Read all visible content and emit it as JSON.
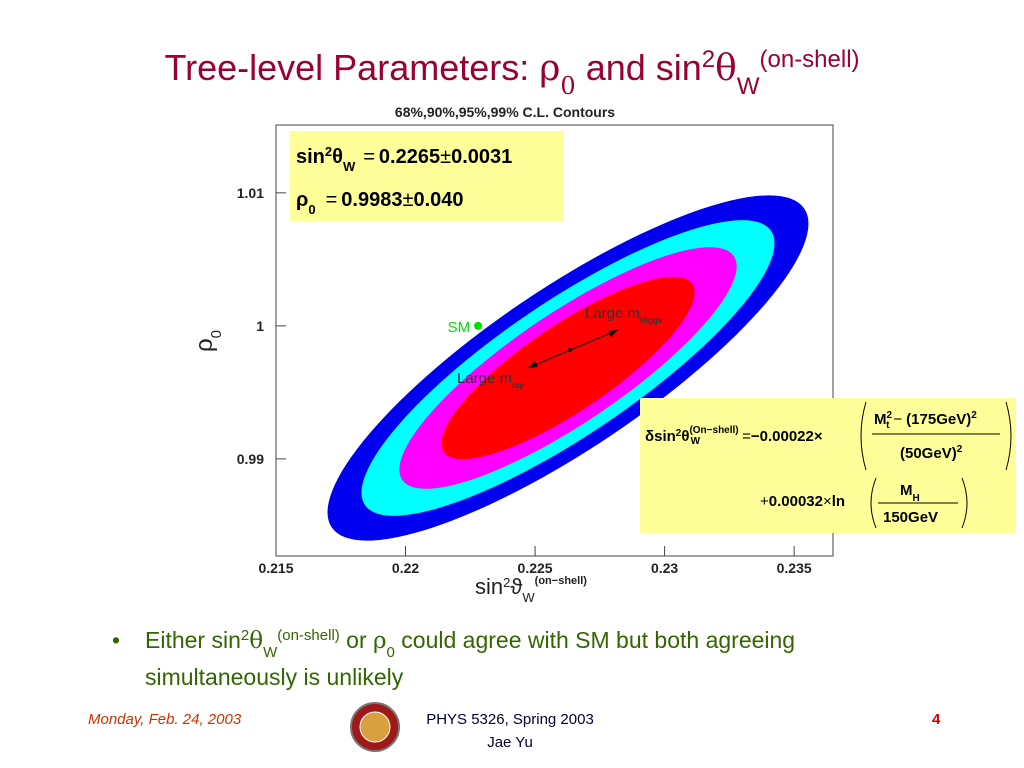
{
  "slide": {
    "title": [
      "Tree-level Parameters: ",
      "ρ",
      "0",
      " and sin",
      "2",
      "θ",
      "W",
      "(on-shell)"
    ],
    "result_box": [
      [
        "sin",
        "2",
        "θ",
        "W",
        "=",
        "0.2265",
        "±",
        "0.0031"
      ],
      [
        "ρ",
        "0",
        "=",
        "0.9983",
        "±",
        "0.040"
      ]
    ],
    "formula_box": {
      "line1": [
        "δsin",
        "2",
        "θ",
        "(On−shell)",
        "W",
        "=",
        "−0.00022×"
      ],
      "numerator": [
        "M",
        "2",
        "t",
        "−",
        "(175GeV)",
        "2"
      ],
      "denominator": [
        "(50GeV)",
        "2"
      ],
      "line2": [
        "+",
        "0.00032",
        "×",
        "ln"
      ],
      "ln_numerator": [
        "M",
        "H"
      ],
      "ln_denominator": "150GeV"
    },
    "bullet": {
      "line1": [
        "Either sin",
        "2",
        "θ",
        "W",
        "(on-shell)",
        " or ",
        "ρ",
        "0",
        " could agree with SM but both agreeing"
      ],
      "line2": "simultaneously is unlikely"
    },
    "footer": {
      "date": "Monday, Feb. 24, 2003",
      "course": "PHYS 5326, Spring 2003",
      "author": "Jae Yu",
      "page": "4"
    }
  },
  "chart_data": {
    "type": "contour",
    "title": "68%,90%,95%,99% C.L. Contours",
    "x_label": [
      "sin",
      "2",
      "ϑ",
      "W",
      "(on−shell)"
    ],
    "y_label": [
      "ρ",
      "0"
    ],
    "xlim": [
      0.215,
      0.2365
    ],
    "ylim": [
      0.9827,
      1.0151
    ],
    "xticks": [
      0.215,
      0.22,
      0.225,
      0.23,
      0.235
    ],
    "yticks": [
      0.99,
      1,
      1.01
    ],
    "contour_colors": [
      "#0000ee",
      "#00ffff",
      "#ff00ff",
      "#ff0000"
    ],
    "points": [
      {
        "label": "SM",
        "x": 0.2228,
        "y": 1,
        "color": "#00dd00"
      }
    ],
    "annotations": [
      [
        "Large m",
        "Higgs"
      ],
      [
        "Large m",
        "top"
      ]
    ]
  }
}
